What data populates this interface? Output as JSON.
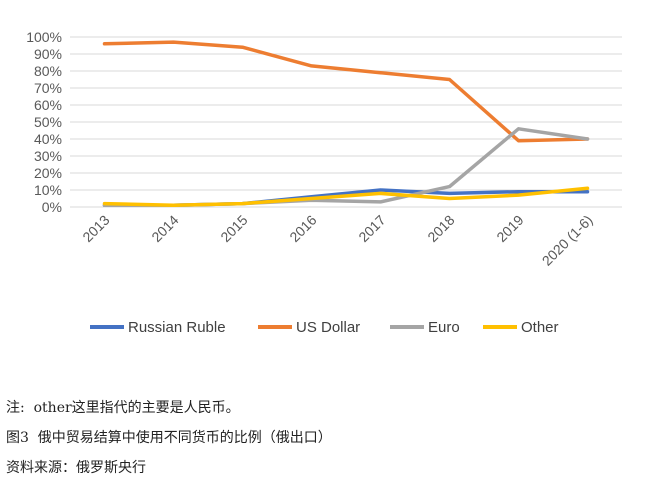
{
  "chart_data": {
    "type": "line",
    "categories": [
      "2013",
      "2014",
      "2015",
      "2016",
      "2017",
      "2018",
      "2019",
      "2020 (1-6)"
    ],
    "y_ticks": [
      "0%",
      "10%",
      "20%",
      "30%",
      "40%",
      "50%",
      "60%",
      "70%",
      "80%",
      "90%",
      "100%"
    ],
    "ylim": [
      0,
      100
    ],
    "grid": true,
    "legend_position": "bottom",
    "series": [
      {
        "name": "Russian Ruble",
        "color": "#4472C4",
        "values": [
          1,
          1,
          2,
          6,
          10,
          8,
          9,
          9
        ]
      },
      {
        "name": "US Dollar",
        "color": "#ED7D31",
        "values": [
          96,
          97,
          94,
          83,
          79,
          75,
          39,
          40
        ]
      },
      {
        "name": "Euro",
        "color": "#A5A5A5",
        "values": [
          1,
          1,
          2,
          4,
          3,
          12,
          46,
          40
        ]
      },
      {
        "name": "Other",
        "color": "#FFC000",
        "values": [
          2,
          1,
          2,
          5,
          8,
          5,
          7,
          11
        ]
      }
    ]
  },
  "captions": {
    "note": "注:  other这里指代的主要是人民币。",
    "figure": "图3  俄中贸易结算中使用不同货币的比例（俄出口）",
    "source": "资料来源：俄罗斯央行"
  }
}
